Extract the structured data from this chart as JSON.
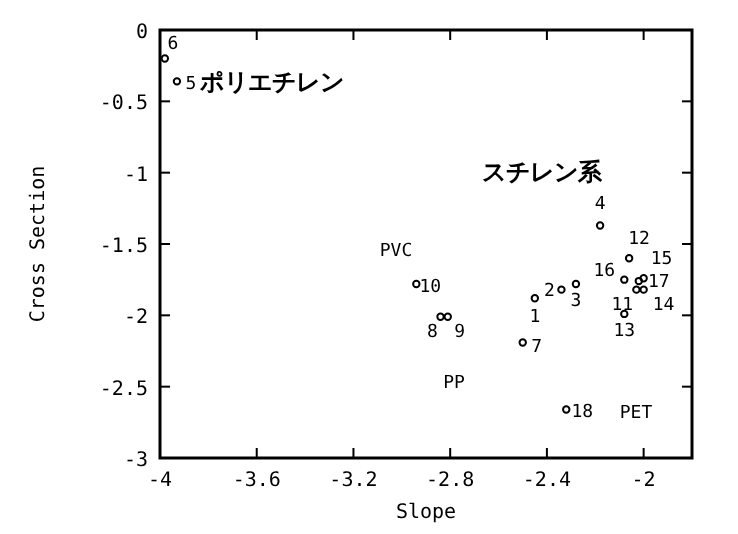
{
  "chart_data": {
    "type": "scatter",
    "xlabel": "Slope",
    "ylabel": "Cross Section",
    "marker": "circle",
    "grid": false,
    "xlim": [
      -4,
      -1.8
    ],
    "ylim": [
      -3,
      0
    ],
    "xticks": [
      -4,
      -3.6,
      -3.2,
      -2.8,
      -2.4,
      -2
    ],
    "yticks": [
      -3,
      -2.5,
      -2,
      -1.5,
      -1,
      -0.5,
      0
    ],
    "series": [
      {
        "color": "#000000",
        "x": [
          -2.45,
          -2.34,
          -2.28,
          -2.18,
          -3.93,
          -3.98,
          -2.5,
          -2.84,
          -2.81,
          -2.94,
          -2.03,
          -2.06,
          -2.08,
          -2.0,
          -2.0,
          -2.08,
          -2.02,
          -2.32
        ],
        "values": [
          -1.88,
          -1.82,
          -1.78,
          -1.37,
          -0.36,
          -0.2,
          -2.19,
          -2.01,
          -2.01,
          -1.78,
          -1.82,
          -1.6,
          -1.99,
          -1.82,
          -1.74,
          -1.75,
          -1.76,
          -2.66
        ]
      }
    ],
    "annotations": [
      {
        "text": "1",
        "x": -2.45,
        "y": -1.88
      },
      {
        "text": "2",
        "x": -2.34,
        "y": -1.82
      },
      {
        "text": "3",
        "x": -2.28,
        "y": -1.78
      },
      {
        "text": "4",
        "x": -2.18,
        "y": -1.37
      },
      {
        "text": "5",
        "x": -3.93,
        "y": -0.36
      },
      {
        "text": "6",
        "x": -3.98,
        "y": -0.2
      },
      {
        "text": "7",
        "x": -2.5,
        "y": -2.19
      },
      {
        "text": "8",
        "x": -2.84,
        "y": -2.01
      },
      {
        "text": "9",
        "x": -2.81,
        "y": -2.01
      },
      {
        "text": "10",
        "x": -2.94,
        "y": -1.78
      },
      {
        "text": "11",
        "x": -2.03,
        "y": -1.82
      },
      {
        "text": "12",
        "x": -2.06,
        "y": -1.6
      },
      {
        "text": "13",
        "x": -2.08,
        "y": -1.99
      },
      {
        "text": "14",
        "x": -2.0,
        "y": -1.82
      },
      {
        "text": "15",
        "x": -2.0,
        "y": -1.74
      },
      {
        "text": "16",
        "x": -2.08,
        "y": -1.75
      },
      {
        "text": "17",
        "x": -2.02,
        "y": -1.76
      },
      {
        "text": "18",
        "x": -2.32,
        "y": -2.66
      },
      "ポリエチレン",
      "スチレン系",
      "PVC",
      "PP",
      "PET"
    ]
  }
}
